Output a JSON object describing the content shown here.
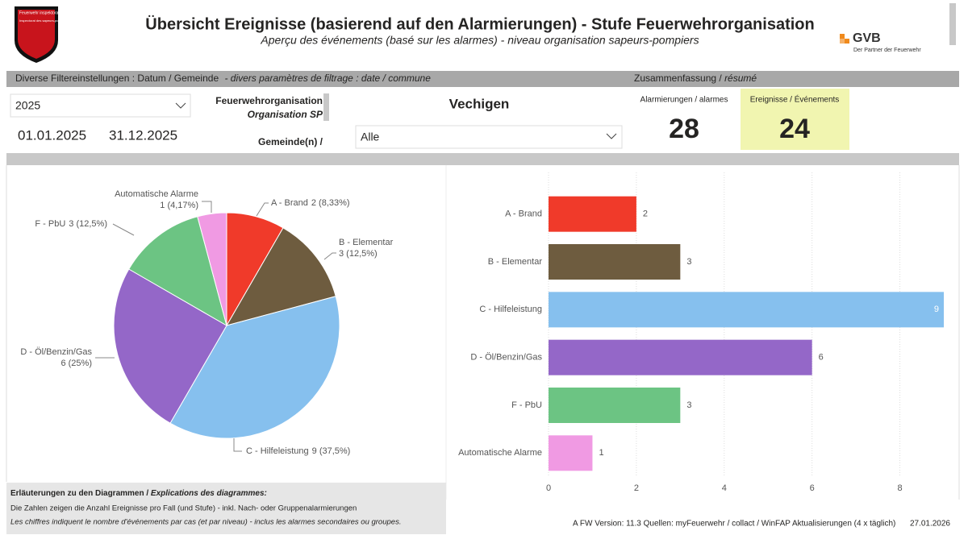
{
  "header": {
    "title": "Übersicht Ereignisse (basierend auf den Alarmierungen) - Stufe Feuerwehrorganisation",
    "subtitle": "Aperçu des événements (basé sur les alarmes) - niveau organisation sapeurs-pompiers",
    "logo_left": [
      "Feuerwehr inspektorat",
      "Inspectorat des sapeurs-pompiers"
    ],
    "logo_right": {
      "name": "GVB",
      "tagline": "Der Partner der Feuerwehr"
    }
  },
  "filter_bar": {
    "filters_de": "Diverse Filtereinstellungen : Datum / Gemeinde",
    "filters_fr": " - divers paramètres de filtrage : date / commune",
    "summary_de": "Zusammenfassung / ",
    "summary_fr": "résumé"
  },
  "filters": {
    "year": "2025",
    "date_from": "01.01.2025",
    "date_to": "31.12.2025",
    "org_label": "Feuerwehrorganisation",
    "org_label_fr": "Organisation SP",
    "org_value": "Vechigen",
    "gemeinde_label": "Gemeinde(n) /",
    "gemeinde_value": "Alle"
  },
  "summary": [
    {
      "label": "Alarmierungen / alarmes",
      "value": 28
    },
    {
      "label": "Ereignisse / Événements",
      "value": 24
    }
  ],
  "chart_data": [
    {
      "type": "pie",
      "categories": [
        "A - Brand",
        "B - Elementar",
        "C - Hilfeleistung",
        "D - Öl/Benzin/Gas",
        "F - PbU",
        "Automatische Alarme"
      ],
      "values": [
        2,
        3,
        9,
        6,
        3,
        1
      ],
      "value_labels": [
        "2 (8,33%)",
        "3 (12,5%)",
        "9 (37,5%)",
        "6 (25%)",
        "3 (12,5%)",
        "1 (4,17%)"
      ],
      "colors": [
        "#f03a2a",
        "#6e5c3f",
        "#86c0ee",
        "#9467c8",
        "#6cc483",
        "#f09ae3"
      ]
    },
    {
      "type": "hbar",
      "categories": [
        "A - Brand",
        "B - Elementar",
        "C - Hilfeleistung",
        "D - Öl/Benzin/Gas",
        "F - PbU",
        "Automatische Alarme"
      ],
      "values": [
        2,
        3,
        9,
        6,
        3,
        1
      ],
      "colors": [
        "#f03a2a",
        "#6e5c3f",
        "#86c0ee",
        "#9467c8",
        "#6cc483",
        "#f09ae3"
      ],
      "xlim": [
        0,
        9
      ],
      "xticks": [
        0,
        2,
        4,
        6,
        8
      ],
      "grid": true
    }
  ],
  "notes": {
    "title_de": "Erläuterungen zu den Diagrammen / ",
    "title_fr": "Explications des diagrammes:",
    "line_de": "Die Zahlen zeigen die Anzahl Ereignisse pro Fall (und Stufe) - inkl. Nach- oder Gruppenalarmierungen",
    "line_fr": "Les chiffres indiquent le nombre d'événements par cas (et par niveau) -  inclus les alarmes secondaires ou groupes."
  },
  "footer": {
    "info": "A FW  Version: 11.3  Quellen: myFeuerwehr / collact / WinFAP  Aktualisierungen (4 x täglich)",
    "date": "27.01.2026"
  }
}
